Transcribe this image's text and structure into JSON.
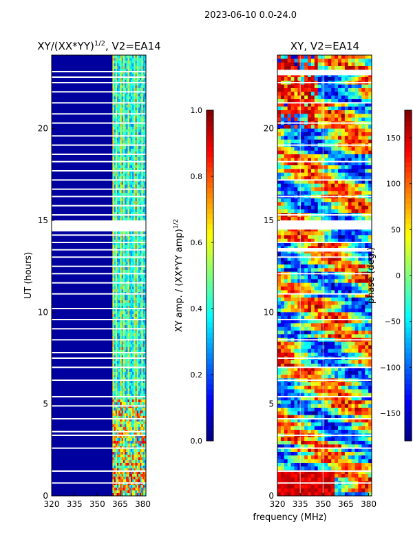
{
  "figure_title": "2023-06-10 0.0-24.0",
  "shared_xlabel": "frequency (MHz)",
  "colors": {
    "missing": "#ffffff",
    "blank": "#ffffff",
    "frame": "#000000",
    "gridline": "#ffffff"
  },
  "chart_data": [
    {
      "id": "amp",
      "type": "heatmap",
      "title_main": "XY/(XX*YY)",
      "title_sup": "1/2",
      "title_tail": ", V2=EA14",
      "xlabel": "",
      "ylabel": "UT (hours)",
      "xlim": [
        320,
        382
      ],
      "ylim": [
        0,
        24
      ],
      "xticks": [
        320,
        335,
        350,
        365,
        380
      ],
      "yticks": [
        0,
        5,
        10,
        15,
        20
      ],
      "data_x_start": 360,
      "colormap": "jet",
      "value_range": [
        0.0,
        1.0
      ],
      "colorbar": {
        "label_main": "XY amp. / (XX*YY amp)",
        "label_sup": "1/2",
        "ticks": [
          0.0,
          0.2,
          0.4,
          0.6,
          0.8,
          1.0
        ],
        "tick_labels": [
          "0.0",
          "0.2",
          "0.4",
          "0.6",
          "0.8",
          "1.0"
        ]
      },
      "background_value": 0.03,
      "blank_time_ranges": [
        [
          14.4,
          15.0
        ]
      ],
      "missing_time_rows": [
        0.7,
        1.35,
        2.6,
        3.3,
        3.5,
        4.2,
        4.9,
        5.4,
        6.3,
        7.0,
        7.5,
        7.8,
        8.5,
        9.1,
        9.6,
        10.2,
        11.0,
        11.6,
        12.1,
        12.5,
        13.0,
        13.4,
        13.8,
        14.2,
        15.3,
        15.8,
        16.3,
        16.7,
        17.2,
        17.7,
        18.2,
        18.6,
        19.1,
        19.6,
        20.3,
        20.8,
        21.4,
        22.0,
        22.5,
        22.8,
        23.1
      ]
    },
    {
      "id": "phase",
      "type": "heatmap",
      "title_main": "XY, V2=EA14",
      "xlabel": "frequency (MHz)",
      "ylabel": "",
      "xlim": [
        320,
        382
      ],
      "ylim": [
        0,
        24
      ],
      "xticks": [
        320,
        335,
        350,
        365,
        380
      ],
      "yticks": [
        0,
        5,
        10,
        15,
        20
      ],
      "colormap": "jet",
      "value_range": [
        -180,
        180
      ],
      "colorbar": {
        "label_main": "phase (deg.)",
        "ticks": [
          -150,
          -100,
          -50,
          0,
          50,
          100,
          150
        ],
        "tick_labels": [
          "−150",
          "−100",
          "−50",
          "0",
          "50",
          "100",
          "150"
        ]
      },
      "blank_time_ranges": [
        [
          14.5,
          15.0
        ],
        [
          13.3,
          13.5
        ],
        [
          22.9,
          23.2
        ]
      ],
      "missing_time_rows": [
        0.7,
        1.35,
        2.6,
        3.3,
        4.2,
        5.4,
        6.3,
        7.0,
        7.5,
        8.5,
        9.6,
        11.0,
        12.1,
        13.0,
        13.8,
        15.3,
        16.3,
        17.2,
        18.2,
        19.1,
        20.3,
        21.4,
        22.5
      ]
    }
  ]
}
